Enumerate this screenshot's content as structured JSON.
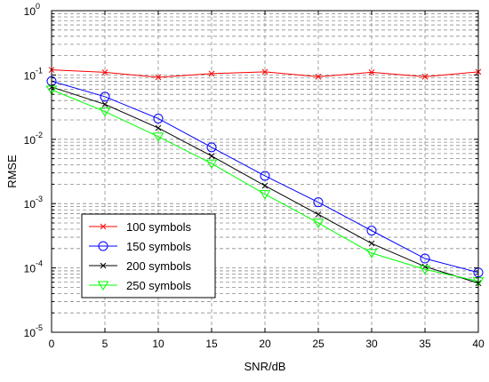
{
  "chart_data": {
    "type": "line",
    "title": "",
    "xlabel": "SNR/dB",
    "ylabel": "RMSE",
    "xlim": [
      0,
      40
    ],
    "ylim": [
      1e-05,
      1
    ],
    "yscale": "log",
    "grid": "dashed, major and minor",
    "legend_position": "bottom-left",
    "x_ticks": [
      "0",
      "5",
      "10",
      "15",
      "20",
      "25",
      "30",
      "35",
      "40"
    ],
    "y_ticks": [
      {
        "base": "10",
        "exp": "0"
      },
      {
        "base": "10",
        "exp": "-1"
      },
      {
        "base": "10",
        "exp": "-2"
      },
      {
        "base": "10",
        "exp": "-3"
      },
      {
        "base": "10",
        "exp": "-4"
      },
      {
        "base": "10",
        "exp": "-5"
      }
    ],
    "x": [
      0,
      5,
      10,
      15,
      20,
      25,
      30,
      35,
      40
    ],
    "series": [
      {
        "name": "100 symbols",
        "color": "#ff0000",
        "marker": "x",
        "values": [
          0.12,
          0.11,
          0.092,
          0.105,
          0.112,
          0.094,
          0.11,
          0.094,
          0.112
        ]
      },
      {
        "name": "150 symbols",
        "color": "#0000ff",
        "marker": "circle",
        "values": [
          0.08,
          0.046,
          0.021,
          0.0075,
          0.0027,
          0.00105,
          0.00038,
          0.00014,
          8.5e-05
        ]
      },
      {
        "name": "200 symbols",
        "color": "#000000",
        "marker": "x",
        "values": [
          0.065,
          0.035,
          0.015,
          0.0055,
          0.0019,
          0.00068,
          0.00024,
          0.000105,
          5.8e-05
        ]
      },
      {
        "name": "250 symbols",
        "color": "#00ff00",
        "marker": "triangle-down",
        "values": [
          0.059,
          0.027,
          0.011,
          0.0042,
          0.0014,
          0.0005,
          0.00017,
          9.5e-05,
          6.2e-05
        ]
      }
    ]
  }
}
